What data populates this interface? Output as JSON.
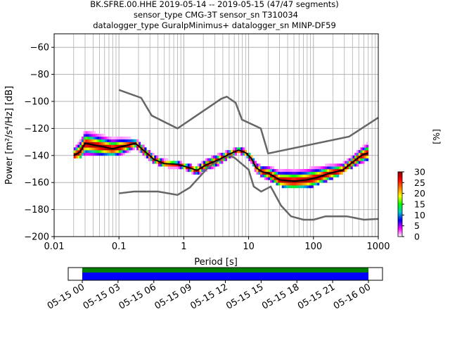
{
  "title_lines": [
    "BK.SFRE.00.HHE   2019-05-14 -- 2019-05-15  (47/47 segments)",
    "sensor_type CMG-3T sensor_sn T310034",
    "datalogger_type GuralpMinimus+ datalogger_sn MINP-DF59"
  ],
  "xlabel": "Period [s]",
  "ylabel": "Power [m²/s⁴/Hz] [dB]",
  "colorbar_label": "[%]",
  "chart_data": {
    "type": "heatmap",
    "x_scale": "log",
    "xlim": [
      0.01,
      1000
    ],
    "ylim": [
      -200,
      -50
    ],
    "grid": true,
    "x_ticks": [
      {
        "value": 0.01,
        "label": "0.01"
      },
      {
        "value": 0.1,
        "label": "0.1"
      },
      {
        "value": 1,
        "label": "1"
      },
      {
        "value": 10,
        "label": "10"
      },
      {
        "value": 100,
        "label": "100"
      },
      {
        "value": 1000,
        "label": "1000"
      }
    ],
    "y_ticks": [
      -200,
      -180,
      -160,
      -140,
      -120,
      -100,
      -80,
      -60
    ],
    "y_tick_labels": [
      "−200",
      "−180",
      "−160",
      "−140",
      "−120",
      "−100",
      "−80",
      "−60"
    ],
    "noise_model_high": [
      [
        0.1,
        -91.5
      ],
      [
        0.22,
        -97.4
      ],
      [
        0.32,
        -110.5
      ],
      [
        0.8,
        -120
      ],
      [
        3.8,
        -98
      ],
      [
        4.6,
        -96.5
      ],
      [
        6.3,
        -101
      ],
      [
        7.9,
        -113.5
      ],
      [
        15.4,
        -120
      ],
      [
        20,
        -138.5
      ],
      [
        354.8,
        -126
      ],
      [
        1000,
        -112
      ]
    ],
    "noise_model_low": [
      [
        0.1,
        -168
      ],
      [
        0.17,
        -166.7
      ],
      [
        0.4,
        -166.7
      ],
      [
        0.8,
        -169.2
      ],
      [
        1.24,
        -163.7
      ],
      [
        2.4,
        -148.6
      ],
      [
        4.3,
        -141
      ],
      [
        5.0,
        -140
      ],
      [
        6.0,
        -141.5
      ],
      [
        10,
        -150.5
      ],
      [
        12,
        -163
      ],
      [
        15.6,
        -166.7
      ],
      [
        21.9,
        -163
      ],
      [
        31.6,
        -177
      ],
      [
        45,
        -185
      ],
      [
        70,
        -187.5
      ],
      [
        101,
        -187.5
      ],
      [
        154,
        -185
      ],
      [
        328,
        -185
      ],
      [
        600,
        -187.5
      ],
      [
        10000,
        -184.4
      ]
    ],
    "mode_curve": [
      [
        0.02,
        -140
      ],
      [
        0.025,
        -137.5
      ],
      [
        0.03,
        -131
      ],
      [
        0.05,
        -133
      ],
      [
        0.08,
        -135
      ],
      [
        0.12,
        -133
      ],
      [
        0.18,
        -131
      ],
      [
        0.25,
        -137
      ],
      [
        0.35,
        -143
      ],
      [
        0.5,
        -146
      ],
      [
        0.8,
        -146.5
      ],
      [
        1.2,
        -149
      ],
      [
        1.6,
        -151
      ],
      [
        2.2,
        -147
      ],
      [
        3.5,
        -143
      ],
      [
        5,
        -139
      ],
      [
        7,
        -136
      ],
      [
        9,
        -138
      ],
      [
        11,
        -142
      ],
      [
        13,
        -149
      ],
      [
        16,
        -152
      ],
      [
        20,
        -153
      ],
      [
        30,
        -158
      ],
      [
        50,
        -159
      ],
      [
        80,
        -158
      ],
      [
        120,
        -156
      ],
      [
        180,
        -153
      ],
      [
        280,
        -151
      ],
      [
        400,
        -145
      ],
      [
        550,
        -140
      ],
      [
        700,
        -138
      ]
    ],
    "psd_band": {
      "segments": 47,
      "center": [
        [
          0.02,
          -137
        ],
        [
          0.03,
          -131
        ],
        [
          0.06,
          -132
        ],
        [
          0.1,
          -134
        ],
        [
          0.18,
          -131
        ],
        [
          0.3,
          -141
        ],
        [
          0.6,
          -146
        ],
        [
          1.0,
          -147
        ],
        [
          1.5,
          -152
        ],
        [
          2.5,
          -146
        ],
        [
          4.0,
          -141
        ],
        [
          6.5,
          -136
        ],
        [
          9.0,
          -139
        ],
        [
          13.0,
          -149
        ],
        [
          20.0,
          -153
        ],
        [
          40.0,
          -157
        ],
        [
          100.0,
          -155
        ],
        [
          200.0,
          -151
        ],
        [
          400.0,
          -144
        ],
        [
          700.0,
          -137
        ]
      ],
      "half_width": [
        [
          0.02,
          5
        ],
        [
          0.03,
          8
        ],
        [
          0.06,
          7
        ],
        [
          0.1,
          6
        ],
        [
          0.18,
          3
        ],
        [
          0.3,
          3
        ],
        [
          1.0,
          2
        ],
        [
          1.5,
          3
        ],
        [
          3.0,
          4
        ],
        [
          6.5,
          2
        ],
        [
          13.0,
          3
        ],
        [
          40.0,
          7
        ],
        [
          100.0,
          7
        ],
        [
          200.0,
          5
        ],
        [
          400.0,
          4
        ],
        [
          700.0,
          6
        ]
      ]
    },
    "colorbar": {
      "range": [
        0,
        30
      ],
      "ticks": [
        0,
        5,
        10,
        15,
        20,
        25,
        30
      ],
      "colormap": [
        "#ffffff",
        "#ff00ff",
        "#0000ff",
        "#00c8c8",
        "#00ff00",
        "#ffff00",
        "#ff8000",
        "#ff0000",
        "#8b0000"
      ]
    },
    "time_axis": {
      "ticks": [
        "05-15 00",
        "05-15 03",
        "05-15 06",
        "05-15 09",
        "05-15 12",
        "05-15 15",
        "05-15 18",
        "05-15 21",
        "05-16 00"
      ],
      "coverage_colors": [
        "#008000",
        "#0000ff"
      ]
    }
  }
}
